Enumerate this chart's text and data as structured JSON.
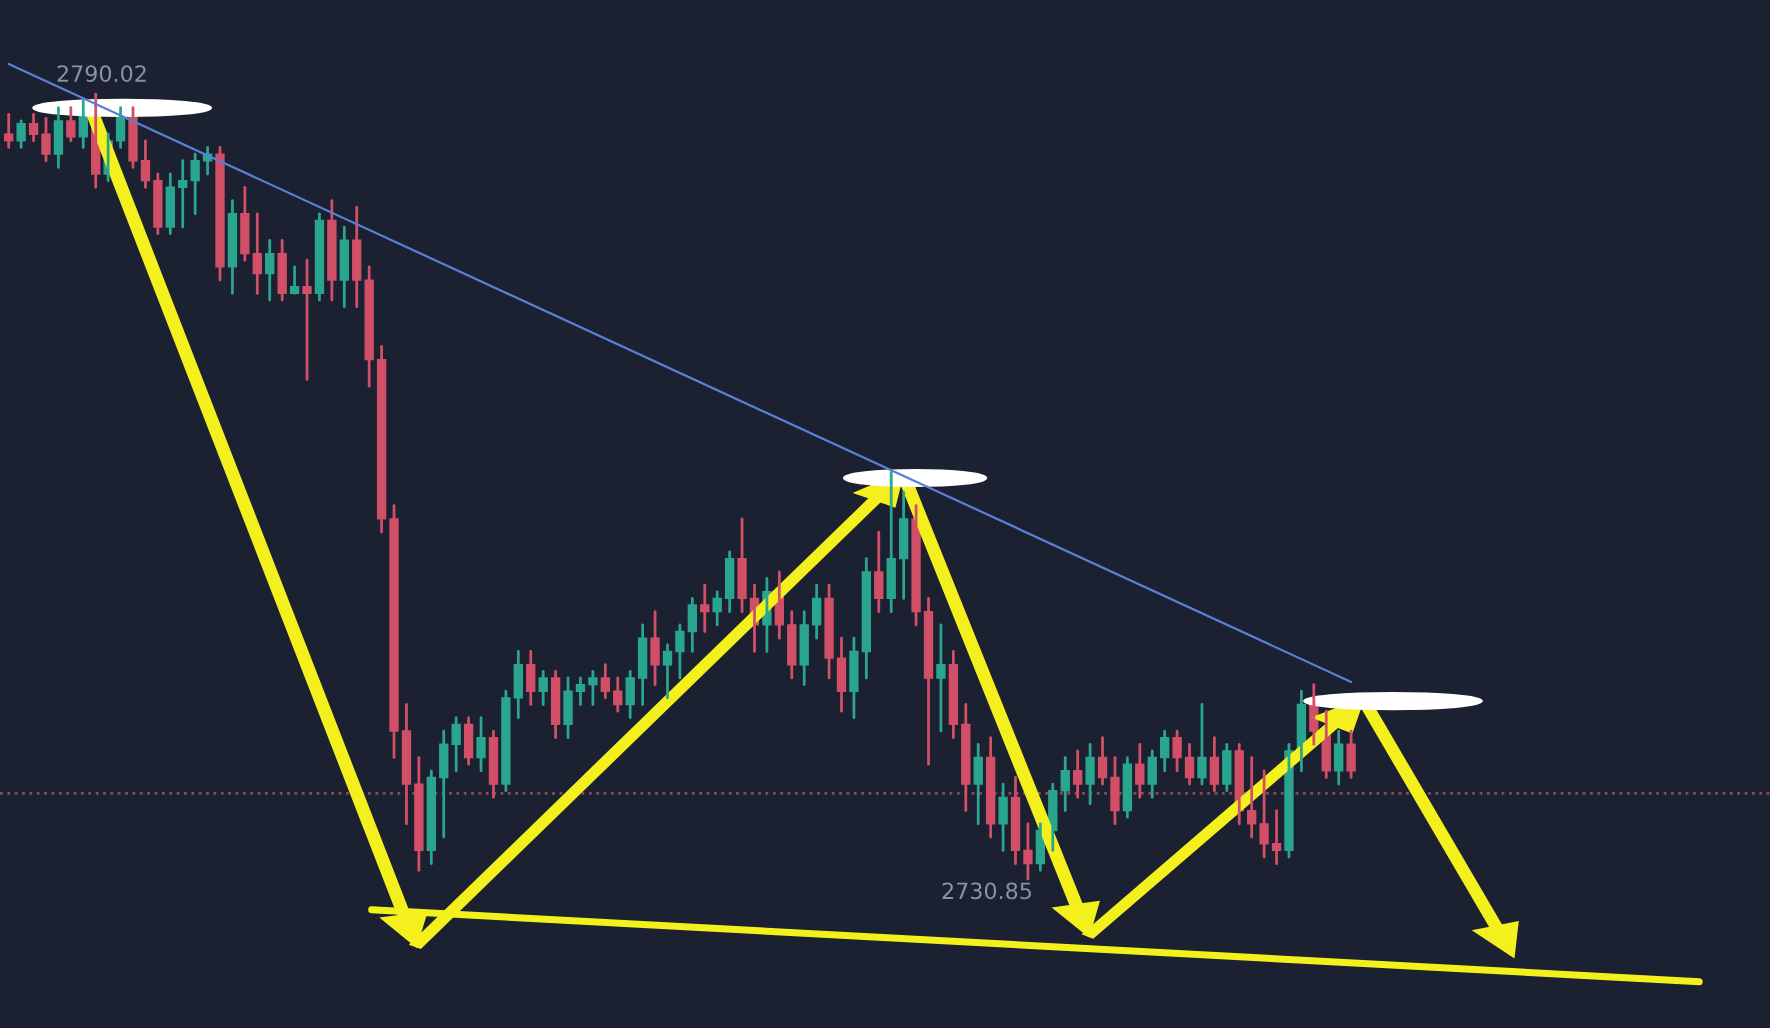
{
  "chart_data": {
    "type": "candlestick",
    "categories": [
      null,
      null,
      null,
      null,
      null,
      null,
      null,
      null,
      null,
      null,
      null,
      null,
      null,
      null,
      null,
      null,
      null,
      null,
      null,
      null,
      null,
      null,
      null,
      null,
      null,
      null,
      null,
      null,
      null,
      null,
      null,
      null,
      null,
      null,
      null,
      null,
      null,
      null,
      null,
      null,
      null,
      null,
      null,
      null,
      null,
      null,
      null,
      null,
      null,
      null,
      null,
      null,
      null,
      null,
      null,
      null,
      null,
      null,
      null,
      null,
      null,
      null,
      null,
      null,
      null,
      null,
      null,
      null,
      null,
      null,
      null,
      null,
      null,
      null,
      null,
      null,
      null,
      null,
      null,
      null,
      null,
      null,
      null,
      null,
      null,
      null,
      null,
      null,
      null,
      null,
      null,
      null,
      null,
      null,
      null,
      null,
      null,
      null,
      null,
      null,
      null,
      null,
      null,
      null,
      null,
      null,
      null,
      null,
      null
    ],
    "ohlc": [
      [
        2787,
        2788.5,
        2786,
        2786.5
      ],
      [
        2786.5,
        2788,
        2786,
        2787.8
      ],
      [
        2787.8,
        2788.5,
        2786.5,
        2787
      ],
      [
        2787,
        2788.2,
        2785,
        2785.5
      ],
      [
        2785.5,
        2789,
        2784.5,
        2788
      ],
      [
        2788,
        2789,
        2786.5,
        2786.8
      ],
      [
        2786.8,
        2789.5,
        2786,
        2789
      ],
      [
        2789,
        2790.02,
        2783,
        2784
      ],
      [
        2784,
        2787,
        2783.5,
        2786.5
      ],
      [
        2786.5,
        2789,
        2786,
        2788.5
      ],
      [
        2788.5,
        2789,
        2784.5,
        2785
      ],
      [
        2785,
        2786.5,
        2783,
        2783.5
      ],
      [
        2783.5,
        2784,
        2779.5,
        2780
      ],
      [
        2780,
        2784,
        2779.5,
        2783
      ],
      [
        2783,
        2785,
        2780,
        2783.5
      ],
      [
        2783.5,
        2785.5,
        2781,
        2785
      ],
      [
        2785,
        2786,
        2784,
        2785.5
      ],
      [
        2785.5,
        2786,
        2776,
        2777
      ],
      [
        2777,
        2782,
        2775,
        2781
      ],
      [
        2781,
        2783,
        2777.5,
        2778
      ],
      [
        2778,
        2781,
        2775,
        2776.5
      ],
      [
        2776.5,
        2779,
        2774.5,
        2778
      ],
      [
        2778,
        2779,
        2774.5,
        2775
      ],
      [
        2775,
        2777,
        2775,
        2775.5
      ],
      [
        2775.5,
        2777.5,
        2768.5,
        2775
      ],
      [
        2775,
        2781,
        2774.5,
        2780.5
      ],
      [
        2780.5,
        2782,
        2774.5,
        2776
      ],
      [
        2776,
        2780,
        2774,
        2779
      ],
      [
        2779,
        2781.5,
        2774,
        2776
      ],
      [
        2776,
        2777,
        2768,
        2770
      ],
      [
        2770,
        2771,
        2757,
        2758
      ],
      [
        2758,
        2759,
        2740,
        2742
      ],
      [
        2742,
        2744,
        2735,
        2738
      ],
      [
        2738,
        2740,
        2731.5,
        2733
      ],
      [
        2733,
        2739,
        2732,
        2738.5
      ],
      [
        2738.5,
        2742,
        2734,
        2741
      ],
      [
        2741,
        2743,
        2739,
        2742.5
      ],
      [
        2742.5,
        2743,
        2739.5,
        2740
      ],
      [
        2740,
        2743,
        2739,
        2741.5
      ],
      [
        2741.5,
        2742,
        2737,
        2738
      ],
      [
        2738,
        2745,
        2737.5,
        2744.5
      ],
      [
        2744.5,
        2748,
        2743,
        2747
      ],
      [
        2747,
        2748,
        2744,
        2745
      ],
      [
        2745,
        2746.5,
        2744,
        2746
      ],
      [
        2746,
        2746.5,
        2741.5,
        2742.5
      ],
      [
        2742.5,
        2746,
        2741.5,
        2745
      ],
      [
        2745,
        2746,
        2744,
        2745.5
      ],
      [
        2745.5,
        2746.5,
        2744,
        2746
      ],
      [
        2746,
        2747,
        2744.5,
        2745
      ],
      [
        2745,
        2746,
        2743.5,
        2744
      ],
      [
        2744,
        2746.5,
        2743,
        2746
      ],
      [
        2746,
        2750,
        2744,
        2749
      ],
      [
        2749,
        2751,
        2745.5,
        2747
      ],
      [
        2747,
        2748.5,
        2744.5,
        2748
      ],
      [
        2748,
        2750,
        2746,
        2749.5
      ],
      [
        2749.5,
        2752,
        2748,
        2751.5
      ],
      [
        2751.5,
        2753,
        2749.5,
        2751
      ],
      [
        2751,
        2752.5,
        2750,
        2752
      ],
      [
        2752,
        2755.5,
        2751,
        2755
      ],
      [
        2755,
        2758,
        2751,
        2752
      ],
      [
        2752,
        2753,
        2748,
        2750
      ],
      [
        2750,
        2753.5,
        2748,
        2752.5
      ],
      [
        2752.5,
        2754,
        2749,
        2750
      ],
      [
        2750,
        2751,
        2746,
        2747
      ],
      [
        2747,
        2751,
        2745.5,
        2750
      ],
      [
        2750,
        2753,
        2749,
        2752
      ],
      [
        2752,
        2753,
        2746,
        2747.5
      ],
      [
        2747.5,
        2749,
        2743.5,
        2745
      ],
      [
        2745,
        2749,
        2743,
        2748
      ],
      [
        2748,
        2755,
        2746,
        2754
      ],
      [
        2754,
        2757,
        2751,
        2752
      ],
      [
        2752,
        2761.5,
        2751,
        2755
      ],
      [
        2755,
        2760,
        2752,
        2758
      ],
      [
        2758,
        2759,
        2750,
        2751
      ],
      [
        2751,
        2752,
        2739.5,
        2746
      ],
      [
        2746,
        2750,
        2742,
        2747
      ],
      [
        2747,
        2748,
        2741.5,
        2742.5
      ],
      [
        2742.5,
        2744,
        2736,
        2738
      ],
      [
        2738,
        2741,
        2735,
        2740
      ],
      [
        2740,
        2741.5,
        2734,
        2735
      ],
      [
        2735,
        2738,
        2733,
        2737
      ],
      [
        2737,
        2738.5,
        2732,
        2733
      ],
      [
        2733,
        2735,
        2730.85,
        2732
      ],
      [
        2732,
        2735,
        2731.5,
        2734.5
      ],
      [
        2734.5,
        2738,
        2733,
        2737.5
      ],
      [
        2737.5,
        2740,
        2736,
        2739
      ],
      [
        2739,
        2740.5,
        2737,
        2738
      ],
      [
        2738,
        2741,
        2736.5,
        2740
      ],
      [
        2740,
        2741.5,
        2738,
        2738.5
      ],
      [
        2738.5,
        2740,
        2735,
        2736
      ],
      [
        2736,
        2740,
        2735.5,
        2739.5
      ],
      [
        2739.5,
        2741,
        2737,
        2738
      ],
      [
        2738,
        2740.5,
        2737,
        2740
      ],
      [
        2740,
        2742,
        2739,
        2741.5
      ],
      [
        2741.5,
        2742,
        2739,
        2740
      ],
      [
        2740,
        2741,
        2738,
        2738.5
      ],
      [
        2738.5,
        2744,
        2738,
        2740
      ],
      [
        2740,
        2741.5,
        2737.5,
        2738
      ],
      [
        2738,
        2741,
        2737.5,
        2740.5
      ],
      [
        2740.5,
        2741,
        2735,
        2736
      ],
      [
        2736,
        2740,
        2734,
        2735
      ],
      [
        2735,
        2739,
        2732.5,
        2733.5
      ],
      [
        2733.5,
        2736,
        2732,
        2733
      ],
      [
        2733,
        2741,
        2732.5,
        2740.5
      ],
      [
        2740.5,
        2745,
        2739,
        2744
      ],
      [
        2744,
        2745.5,
        2741,
        2742
      ],
      [
        2742,
        2743.5,
        2738.5,
        2739
      ],
      [
        2739,
        2742,
        2738,
        2741
      ],
      [
        2741,
        2742,
        2738.5,
        2739
      ]
    ],
    "series": [
      {
        "type": "line",
        "color": "#5b7fd6",
        "values": [
          2792.3,
          null,
          null,
          null,
          null,
          null,
          null,
          null,
          null,
          null,
          null,
          null,
          null,
          null,
          null,
          null,
          null,
          null,
          null,
          null,
          null,
          null,
          null,
          null,
          null,
          null,
          null,
          null,
          null,
          null,
          null,
          null,
          null,
          null,
          null,
          null,
          null,
          null,
          null,
          null,
          null,
          null,
          null,
          null,
          null,
          null,
          null,
          null,
          null,
          null,
          null,
          null,
          null,
          null,
          null,
          null,
          null,
          null,
          null,
          null,
          null,
          null,
          null,
          null,
          null,
          null,
          null,
          null,
          null,
          null,
          null,
          null,
          null,
          null,
          null,
          null,
          null,
          null,
          null,
          null,
          null,
          null,
          null,
          null,
          null,
          null,
          null,
          null,
          null,
          null,
          null,
          null,
          null,
          null,
          null,
          null,
          null,
          null,
          null,
          null,
          null,
          null,
          null,
          null,
          null,
          null,
          null,
          null,
          2745.7
        ]
      }
    ],
    "annotations": [
      "2790.02",
      "2730.85"
    ],
    "ref_lines": [
      {
        "axis": "y",
        "value": 2737.3,
        "color": "#8a4a55",
        "line_style": "dotted"
      }
    ]
  }
}
